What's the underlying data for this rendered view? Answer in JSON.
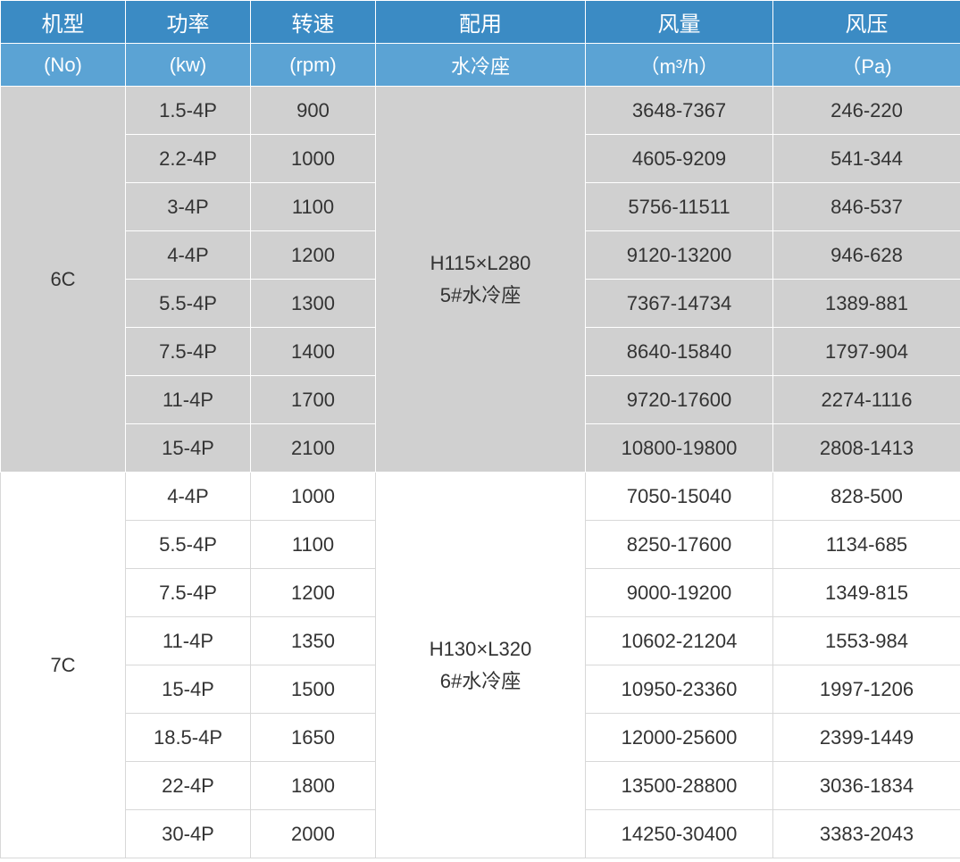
{
  "table": {
    "headers_row1": {
      "model": "机型",
      "power": "功率",
      "rpm": "转速",
      "usage": "配用",
      "airflow": "风量",
      "pressure": "风压"
    },
    "headers_row2": {
      "model": "(No)",
      "power": "(kw)",
      "rpm": "(rpm)",
      "usage": "水冷座",
      "airflow": "（m³/h）",
      "pressure": "（Pa)"
    },
    "groups": [
      {
        "model": "6C",
        "usage_line1": "H115×L280",
        "usage_line2": "5#水冷座",
        "rows": [
          {
            "power": "1.5-4P",
            "rpm": "900",
            "airflow": "3648-7367",
            "pressure": "246-220"
          },
          {
            "power": "2.2-4P",
            "rpm": "1000",
            "airflow": "4605-9209",
            "pressure": "541-344"
          },
          {
            "power": "3-4P",
            "rpm": "1100",
            "airflow": "5756-11511",
            "pressure": "846-537"
          },
          {
            "power": "4-4P",
            "rpm": "1200",
            "airflow": "9120-13200",
            "pressure": "946-628"
          },
          {
            "power": "5.5-4P",
            "rpm": "1300",
            "airflow": "7367-14734",
            "pressure": "1389-881"
          },
          {
            "power": "7.5-4P",
            "rpm": "1400",
            "airflow": "8640-15840",
            "pressure": "1797-904"
          },
          {
            "power": "11-4P",
            "rpm": "1700",
            "airflow": "9720-17600",
            "pressure": "2274-1116"
          },
          {
            "power": "15-4P",
            "rpm": "2100",
            "airflow": "10800-19800",
            "pressure": "2808-1413"
          }
        ]
      },
      {
        "model": "7C",
        "usage_line1": "H130×L320",
        "usage_line2": "6#水冷座",
        "rows": [
          {
            "power": "4-4P",
            "rpm": "1000",
            "airflow": "7050-15040",
            "pressure": "828-500"
          },
          {
            "power": "5.5-4P",
            "rpm": "1100",
            "airflow": "8250-17600",
            "pressure": "1134-685"
          },
          {
            "power": "7.5-4P",
            "rpm": "1200",
            "airflow": "9000-19200",
            "pressure": "1349-815"
          },
          {
            "power": "11-4P",
            "rpm": "1350",
            "airflow": "10602-21204",
            "pressure": "1553-984"
          },
          {
            "power": "15-4P",
            "rpm": "1500",
            "airflow": "10950-23360",
            "pressure": "1997-1206"
          },
          {
            "power": "18.5-4P",
            "rpm": "1650",
            "airflow": "12000-25600",
            "pressure": "2399-1449"
          },
          {
            "power": "22-4P",
            "rpm": "1800",
            "airflow": "13500-28800",
            "pressure": "3036-1834"
          },
          {
            "power": "30-4P",
            "rpm": "2000",
            "airflow": "14250-30400",
            "pressure": "3383-2043"
          }
        ]
      }
    ],
    "colors": {
      "header1_bg": "#3b8bc4",
      "header2_bg": "#5ba3d4",
      "header_text": "#ffffff",
      "group1_bg": "#d0d0d0",
      "group2_bg": "#ffffff",
      "cell_text": "#333333",
      "border_white": "#ffffff",
      "border_gray": "#d8d8d8"
    },
    "column_widths": {
      "model": 140,
      "power": 140,
      "rpm": 140,
      "usage": 235,
      "airflow": 210,
      "pressure": 210
    },
    "font_sizes": {
      "header1": 24,
      "header2": 22,
      "body": 22
    }
  }
}
